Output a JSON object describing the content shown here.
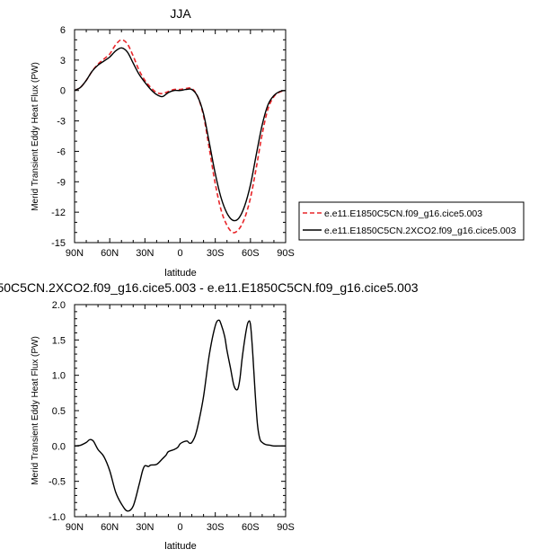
{
  "chart_data": [
    {
      "type": "line",
      "title": "JJA",
      "xlabel": "latitude",
      "ylabel": "Merid Transient Eddy Heat Flux (PW)",
      "xlim": [
        90,
        -90
      ],
      "ylim": [
        -15,
        6
      ],
      "x_ticks": [
        90,
        60,
        30,
        0,
        -30,
        -60,
        -90
      ],
      "x_tick_labels": [
        "90N",
        "60N",
        "30N",
        "0",
        "30S",
        "60S",
        "90S"
      ],
      "y_ticks": [
        -15,
        -12,
        -9,
        -6,
        -3,
        0,
        3,
        6
      ],
      "legend": {
        "placement": "right"
      },
      "series": [
        {
          "name": "e.e11.E1850C5CN.f09_g16.cice5.003",
          "color": "#e8262a",
          "dash": "dashed",
          "x": [
            90,
            85,
            80,
            75,
            70,
            65,
            60,
            55,
            50,
            45,
            40,
            35,
            30,
            25,
            20,
            15,
            10,
            5,
            0,
            -5,
            -10,
            -15,
            -20,
            -25,
            -30,
            -35,
            -40,
            -45,
            -50,
            -55,
            -60,
            -65,
            -70,
            -75,
            -80,
            -85,
            -90
          ],
          "y": [
            0.0,
            0.3,
            1.0,
            1.9,
            2.6,
            3.1,
            3.6,
            4.5,
            5.0,
            4.6,
            3.4,
            2.0,
            1.0,
            0.3,
            -0.2,
            -0.3,
            -0.1,
            0.1,
            0.1,
            0.2,
            0.2,
            -0.6,
            -2.5,
            -5.8,
            -9.2,
            -11.8,
            -13.3,
            -14.0,
            -13.7,
            -12.6,
            -10.6,
            -7.6,
            -4.3,
            -1.8,
            -0.6,
            -0.15,
            0.0
          ]
        },
        {
          "name": "e.e11.E1850C5CN.2XCO2.f09_g16.cice5.003",
          "color": "#000000",
          "dash": "solid",
          "x": [
            90,
            85,
            80,
            75,
            70,
            65,
            60,
            55,
            50,
            45,
            40,
            35,
            30,
            25,
            20,
            15,
            10,
            5,
            0,
            -5,
            -10,
            -15,
            -20,
            -25,
            -30,
            -35,
            -40,
            -45,
            -50,
            -55,
            -60,
            -65,
            -70,
            -75,
            -80,
            -85,
            -90
          ],
          "y": [
            0.0,
            0.3,
            1.0,
            1.9,
            2.5,
            2.9,
            3.3,
            3.9,
            4.2,
            3.8,
            2.7,
            1.6,
            0.8,
            0.1,
            -0.4,
            -0.6,
            -0.2,
            0.0,
            0.0,
            0.1,
            0.1,
            -0.6,
            -2.3,
            -5.2,
            -8.2,
            -10.6,
            -12.1,
            -12.8,
            -12.6,
            -11.4,
            -9.3,
            -6.3,
            -3.4,
            -1.4,
            -0.5,
            -0.1,
            0.0
          ]
        }
      ]
    },
    {
      "type": "line",
      "title": "50C5CN.2XCO2.f09_g16.cice5.003 - e.e11.E1850C5CN.f09_g16.cice5.003",
      "xlabel": "latitude",
      "ylabel": "Merid Transient Eddy Heat Flux (PW)",
      "xlim": [
        90,
        -90
      ],
      "ylim": [
        -1.0,
        2.0
      ],
      "x_ticks": [
        90,
        60,
        30,
        0,
        -30,
        -60,
        -90
      ],
      "x_tick_labels": [
        "90N",
        "60N",
        "30N",
        "0",
        "30S",
        "60S",
        "90S"
      ],
      "y_ticks": [
        -1.0,
        -0.5,
        0.0,
        0.5,
        1.0,
        1.5,
        2.0
      ],
      "y_tick_labels": [
        "-1.0",
        "-0.5",
        "0.0",
        "0.5",
        "1.0",
        "1.5",
        "2.0"
      ],
      "series": [
        {
          "color": "#000000",
          "dash": "solid",
          "x": [
            90,
            85,
            80,
            77,
            74,
            70,
            65,
            60,
            55,
            50,
            45,
            40,
            35,
            32,
            30,
            27,
            25,
            20,
            15,
            12,
            10,
            5,
            2,
            0,
            -3,
            -6,
            -8,
            -10,
            -13,
            -16,
            -20,
            -25,
            -30,
            -33,
            -35,
            -38,
            -40,
            -43,
            -46,
            -49,
            -51,
            -53,
            -56,
            -58,
            -60,
            -62,
            -64,
            -66,
            -68,
            -70,
            -73,
            -77,
            -80,
            -85,
            -90
          ],
          "y": [
            0.0,
            0.01,
            0.05,
            0.09,
            0.07,
            -0.05,
            -0.15,
            -0.35,
            -0.65,
            -0.82,
            -0.92,
            -0.85,
            -0.55,
            -0.35,
            -0.28,
            -0.29,
            -0.27,
            -0.26,
            -0.18,
            -0.13,
            -0.08,
            -0.05,
            -0.02,
            0.03,
            0.06,
            0.07,
            0.04,
            0.05,
            0.15,
            0.35,
            0.7,
            1.3,
            1.7,
            1.78,
            1.72,
            1.55,
            1.35,
            1.1,
            0.85,
            0.8,
            0.95,
            1.25,
            1.6,
            1.75,
            1.72,
            1.3,
            0.75,
            0.3,
            0.1,
            0.05,
            0.02,
            0.01,
            0.0,
            0.0,
            0.0
          ]
        }
      ]
    }
  ]
}
